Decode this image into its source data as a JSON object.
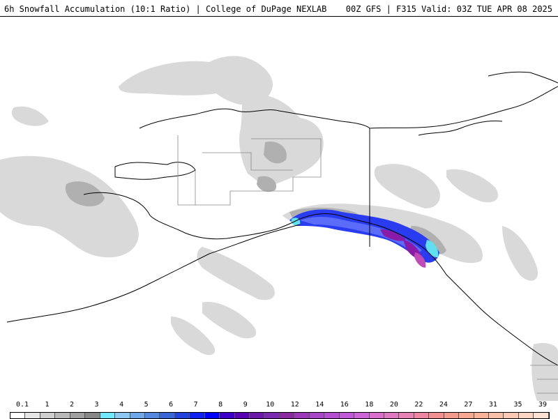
{
  "header": {
    "title": "6h Snowfall Accumulation (10:1 Ratio) | College of DuPage NEXLAB",
    "run_info": "00Z GFS | F315 Valid: 03Z TUE APR 08 2025"
  },
  "legend": {
    "tick_labels": [
      "0.1",
      "1",
      "2",
      "3",
      "4",
      "5",
      "6",
      "7",
      "8",
      "9",
      "10",
      "12",
      "14",
      "16",
      "18",
      "20",
      "22",
      "24",
      "27",
      "31",
      "35",
      "39"
    ],
    "colors": [
      "#ffffff",
      "#e6e6e6",
      "#cfcfcf",
      "#b8b8b8",
      "#a0a0a0",
      "#888888",
      "#70e8ff",
      "#8cc8f0",
      "#6fa8e8",
      "#5588e0",
      "#3a66d8",
      "#2244dd",
      "#1020ee",
      "#0000ff",
      "#3c00c8",
      "#5a00b4",
      "#6a1aa8",
      "#7a2ab0",
      "#8a2aa0",
      "#9a3ab8",
      "#a846c8",
      "#b450d0",
      "#c05ad8",
      "#cc66d8",
      "#d870cc",
      "#e07ac0",
      "#e884b4",
      "#ee88a0",
      "#f29090",
      "#f49c8c",
      "#f6a890",
      "#f8b49a",
      "#f9c0a8",
      "#facab4",
      "#fbd6c2",
      "#fce0d0"
    ]
  },
  "map_layers": {
    "land_stroke": "#000000",
    "border_stroke": "#888888",
    "light_snow": "#d9d9d9",
    "moderate_snow": "#b0b0b0",
    "heavy_blue": "#2a3cf0",
    "heavy_purple": "#8a1aa8",
    "cyan": "#5fe0f0"
  }
}
